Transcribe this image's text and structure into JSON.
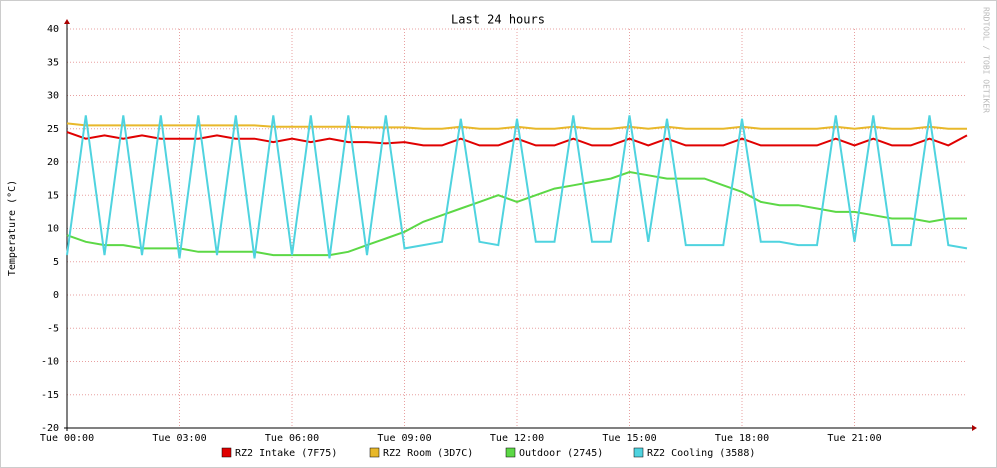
{
  "chart_data": {
    "type": "line",
    "title": "Last 24 hours",
    "y_label": "Temperature (°C)",
    "watermark": "RRDTOOL / TOBI OETIKER",
    "x": [
      0,
      0.5,
      1,
      1.5,
      2,
      2.5,
      3,
      3.5,
      4,
      4.5,
      5,
      5.5,
      6,
      6.5,
      7,
      7.5,
      8,
      8.5,
      9,
      9.5,
      10,
      10.5,
      11,
      11.5,
      12,
      12.5,
      13,
      13.5,
      14,
      14.5,
      15,
      15.5,
      16,
      16.5,
      17,
      17.5,
      18,
      18.5,
      19,
      19.5,
      20,
      20.5,
      21,
      21.5,
      22,
      22.5,
      23,
      23.5,
      24
    ],
    "xlim": [
      0,
      24
    ],
    "xticks": [
      {
        "value": 0,
        "label": "Tue 00:00"
      },
      {
        "value": 3,
        "label": "Tue 03:00"
      },
      {
        "value": 6,
        "label": "Tue 06:00"
      },
      {
        "value": 9,
        "label": "Tue 09:00"
      },
      {
        "value": 12,
        "label": "Tue 12:00"
      },
      {
        "value": 15,
        "label": "Tue 15:00"
      },
      {
        "value": 18,
        "label": "Tue 18:00"
      },
      {
        "value": 21,
        "label": "Tue 21:00"
      }
    ],
    "ylim": [
      -20,
      40
    ],
    "yticks": [
      40,
      35,
      30,
      25,
      20,
      15,
      10,
      5,
      0,
      -5,
      -10,
      -15,
      -20
    ],
    "grid": true,
    "legend": "bottom",
    "series": [
      {
        "name": "RZ2 Intake (7F75)",
        "color": "#e00000",
        "values": [
          24.5,
          23.5,
          24,
          23.5,
          24,
          23.5,
          23.5,
          23.5,
          24,
          23.5,
          23.5,
          23,
          23.5,
          23,
          23.5,
          23,
          23,
          22.8,
          23,
          22.5,
          22.5,
          23.5,
          22.5,
          22.5,
          23.5,
          22.5,
          22.5,
          23.5,
          22.5,
          22.5,
          23.5,
          22.5,
          23.5,
          22.5,
          22.5,
          22.5,
          23.5,
          22.5,
          22.5,
          22.5,
          22.5,
          23.5,
          22.5,
          23.5,
          22.5,
          22.5,
          23.5,
          22.5,
          24
        ]
      },
      {
        "name": "RZ2 Room (3D7C)",
        "color": "#e8b82a",
        "values": [
          25.8,
          25.5,
          25.5,
          25.5,
          25.5,
          25.5,
          25.5,
          25.5,
          25.5,
          25.5,
          25.5,
          25.3,
          25.3,
          25.3,
          25.3,
          25.3,
          25.2,
          25.2,
          25.2,
          25,
          25,
          25.3,
          25,
          25,
          25.3,
          25,
          25,
          25.3,
          25,
          25,
          25.3,
          25,
          25.3,
          25,
          25,
          25,
          25.3,
          25,
          25,
          25,
          25,
          25.3,
          25,
          25.3,
          25,
          25,
          25.3,
          25,
          25
        ]
      },
      {
        "name": "Outdoor (2745)",
        "color": "#5cd846",
        "values": [
          9,
          8,
          7.5,
          7.5,
          7,
          7,
          7,
          6.5,
          6.5,
          6.5,
          6.5,
          6,
          6,
          6,
          6,
          6.5,
          7.5,
          8.5,
          9.5,
          11,
          12,
          13,
          14,
          15,
          14,
          15,
          16,
          16.5,
          17,
          17.5,
          18.5,
          18,
          17.5,
          17.5,
          17.5,
          16.5,
          15.5,
          14,
          13.5,
          13.5,
          13,
          12.5,
          12.5,
          12,
          11.5,
          11.5,
          11,
          11.5,
          11.5
        ]
      },
      {
        "name": "RZ2 Cooling (3588)",
        "color": "#4fd3df",
        "values": [
          6,
          27,
          6,
          27,
          6,
          27,
          5.5,
          27,
          6,
          27,
          5.5,
          27,
          6,
          27,
          5.5,
          27,
          6,
          27,
          7,
          7.5,
          8,
          26.5,
          8,
          7.5,
          26.5,
          8,
          8,
          27,
          8,
          8,
          27,
          8,
          26.5,
          7.5,
          7.5,
          7.5,
          26.5,
          8,
          8,
          7.5,
          7.5,
          27,
          8,
          27,
          7.5,
          7.5,
          27,
          7.5,
          7
        ]
      }
    ]
  }
}
